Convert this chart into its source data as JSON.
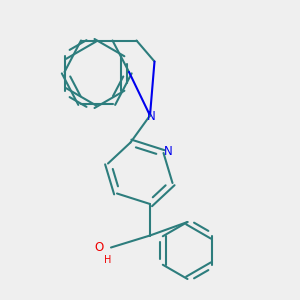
{
  "background_color": "#efefef",
  "bond_color": "#2d7d7d",
  "nitrogen_color": "#0000ee",
  "oxygen_color": "#ee0000",
  "lw": 1.5,
  "figsize": [
    3.0,
    3.0
  ],
  "dpi": 100,
  "atoms": {
    "N1": [
      0.5,
      0.615
    ],
    "N2": [
      0.615,
      0.435
    ],
    "O": [
      0.3,
      0.235
    ]
  },
  "label_N1": "N",
  "label_N2": "N",
  "label_O": "O",
  "label_H": "H"
}
